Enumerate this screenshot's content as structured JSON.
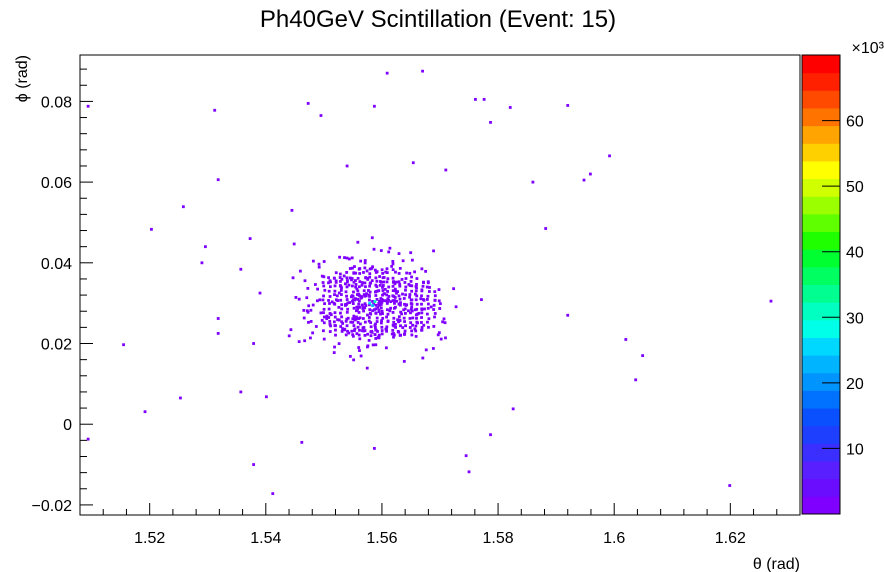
{
  "chart_data": {
    "type": "scatter",
    "title": "Ph40GeV Scintillation (Event: 15)",
    "xlabel": "θ (rad)",
    "ylabel": "ϕ (rad)",
    "xlim": [
      1.508,
      1.632
    ],
    "ylim": [
      -0.0225,
      0.0915
    ],
    "x_ticks": [
      1.52,
      1.54,
      1.56,
      1.58,
      1.6,
      1.62
    ],
    "x_tick_labels": [
      "1.52",
      "1.54",
      "1.56",
      "1.58",
      "1.6",
      "1.62"
    ],
    "y_ticks": [
      -0.02,
      0,
      0.02,
      0.04,
      0.06,
      0.08
    ],
    "y_tick_labels": [
      "−0.02",
      "0",
      "0.02",
      "0.04",
      "0.06",
      "0.08"
    ],
    "colorbar": {
      "multiplier": "×10³",
      "range": [
        0,
        70
      ],
      "ticks": [
        10,
        20,
        30,
        40,
        50,
        60
      ],
      "tick_labels": [
        "10",
        "20",
        "30",
        "40",
        "50",
        "60"
      ],
      "palette": [
        "#7f00ff",
        "#6a0dff",
        "#5a1fff",
        "#3a2fff",
        "#1f3fff",
        "#0a50ff",
        "#0072ff",
        "#0094ff",
        "#00b4ff",
        "#00d8ff",
        "#00ffe8",
        "#00ffc0",
        "#00ff90",
        "#00ff60",
        "#00ff30",
        "#20ff00",
        "#60ff00",
        "#9cff00",
        "#d0ff00",
        "#ffff00",
        "#ffd000",
        "#ffa400",
        "#ff7400",
        "#ff4a00",
        "#ff2000",
        "#ff0000"
      ]
    },
    "grid": false,
    "legend": "none",
    "points_outliers": [
      {
        "x": 1.5094,
        "y": 0.0788
      },
      {
        "x": 1.5094,
        "y": -0.0037
      },
      {
        "x": 1.5155,
        "y": 0.0197
      },
      {
        "x": 1.5192,
        "y": 0.0031
      },
      {
        "x": 1.5203,
        "y": 0.0483
      },
      {
        "x": 1.5253,
        "y": 0.0065
      },
      {
        "x": 1.5258,
        "y": 0.0539
      },
      {
        "x": 1.529,
        "y": 0.04
      },
      {
        "x": 1.5296,
        "y": 0.044
      },
      {
        "x": 1.5312,
        "y": 0.0778
      },
      {
        "x": 1.5318,
        "y": 0.0606
      },
      {
        "x": 1.5318,
        "y": 0.0262
      },
      {
        "x": 1.5318,
        "y": 0.0225
      },
      {
        "x": 1.5357,
        "y": 0.0384
      },
      {
        "x": 1.5357,
        "y": 0.008
      },
      {
        "x": 1.5373,
        "y": 0.046
      },
      {
        "x": 1.5379,
        "y": 0.02
      },
      {
        "x": 1.5379,
        "y": -0.01
      },
      {
        "x": 1.539,
        "y": 0.0325
      },
      {
        "x": 1.5401,
        "y": 0.0068
      },
      {
        "x": 1.5412,
        "y": -0.0172
      },
      {
        "x": 1.5445,
        "y": 0.053
      },
      {
        "x": 1.5462,
        "y": -0.0045
      },
      {
        "x": 1.5473,
        "y": 0.0795
      },
      {
        "x": 1.5495,
        "y": 0.0765
      },
      {
        "x": 1.554,
        "y": 0.064
      },
      {
        "x": 1.556,
        "y": 0.019
      },
      {
        "x": 1.5587,
        "y": 0.0788
      },
      {
        "x": 1.5587,
        "y": -0.006
      },
      {
        "x": 1.5609,
        "y": 0.087
      },
      {
        "x": 1.5654,
        "y": 0.0648
      },
      {
        "x": 1.567,
        "y": 0.0875
      },
      {
        "x": 1.571,
        "y": 0.063
      },
      {
        "x": 1.5745,
        "y": -0.0078
      },
      {
        "x": 1.575,
        "y": -0.0118
      },
      {
        "x": 1.5761,
        "y": 0.0805
      },
      {
        "x": 1.5776,
        "y": 0.0805
      },
      {
        "x": 1.5787,
        "y": 0.0748
      },
      {
        "x": 1.5787,
        "y": -0.0026
      },
      {
        "x": 1.5821,
        "y": 0.0785
      },
      {
        "x": 1.5826,
        "y": 0.0038
      },
      {
        "x": 1.586,
        "y": 0.06
      },
      {
        "x": 1.5882,
        "y": 0.0485
      },
      {
        "x": 1.592,
        "y": 0.079
      },
      {
        "x": 1.592,
        "y": 0.027
      },
      {
        "x": 1.5948,
        "y": 0.0605
      },
      {
        "x": 1.5959,
        "y": 0.062
      },
      {
        "x": 1.5992,
        "y": 0.0665
      },
      {
        "x": 1.602,
        "y": 0.021
      },
      {
        "x": 1.6037,
        "y": 0.011
      },
      {
        "x": 1.6049,
        "y": 0.017
      },
      {
        "x": 1.6199,
        "y": -0.0152
      },
      {
        "x": 1.627,
        "y": 0.0305
      }
    ],
    "cluster": {
      "center": [
        1.5584,
        0.0296
      ],
      "peak_point": [
        1.5584,
        0.03
      ]
    }
  }
}
